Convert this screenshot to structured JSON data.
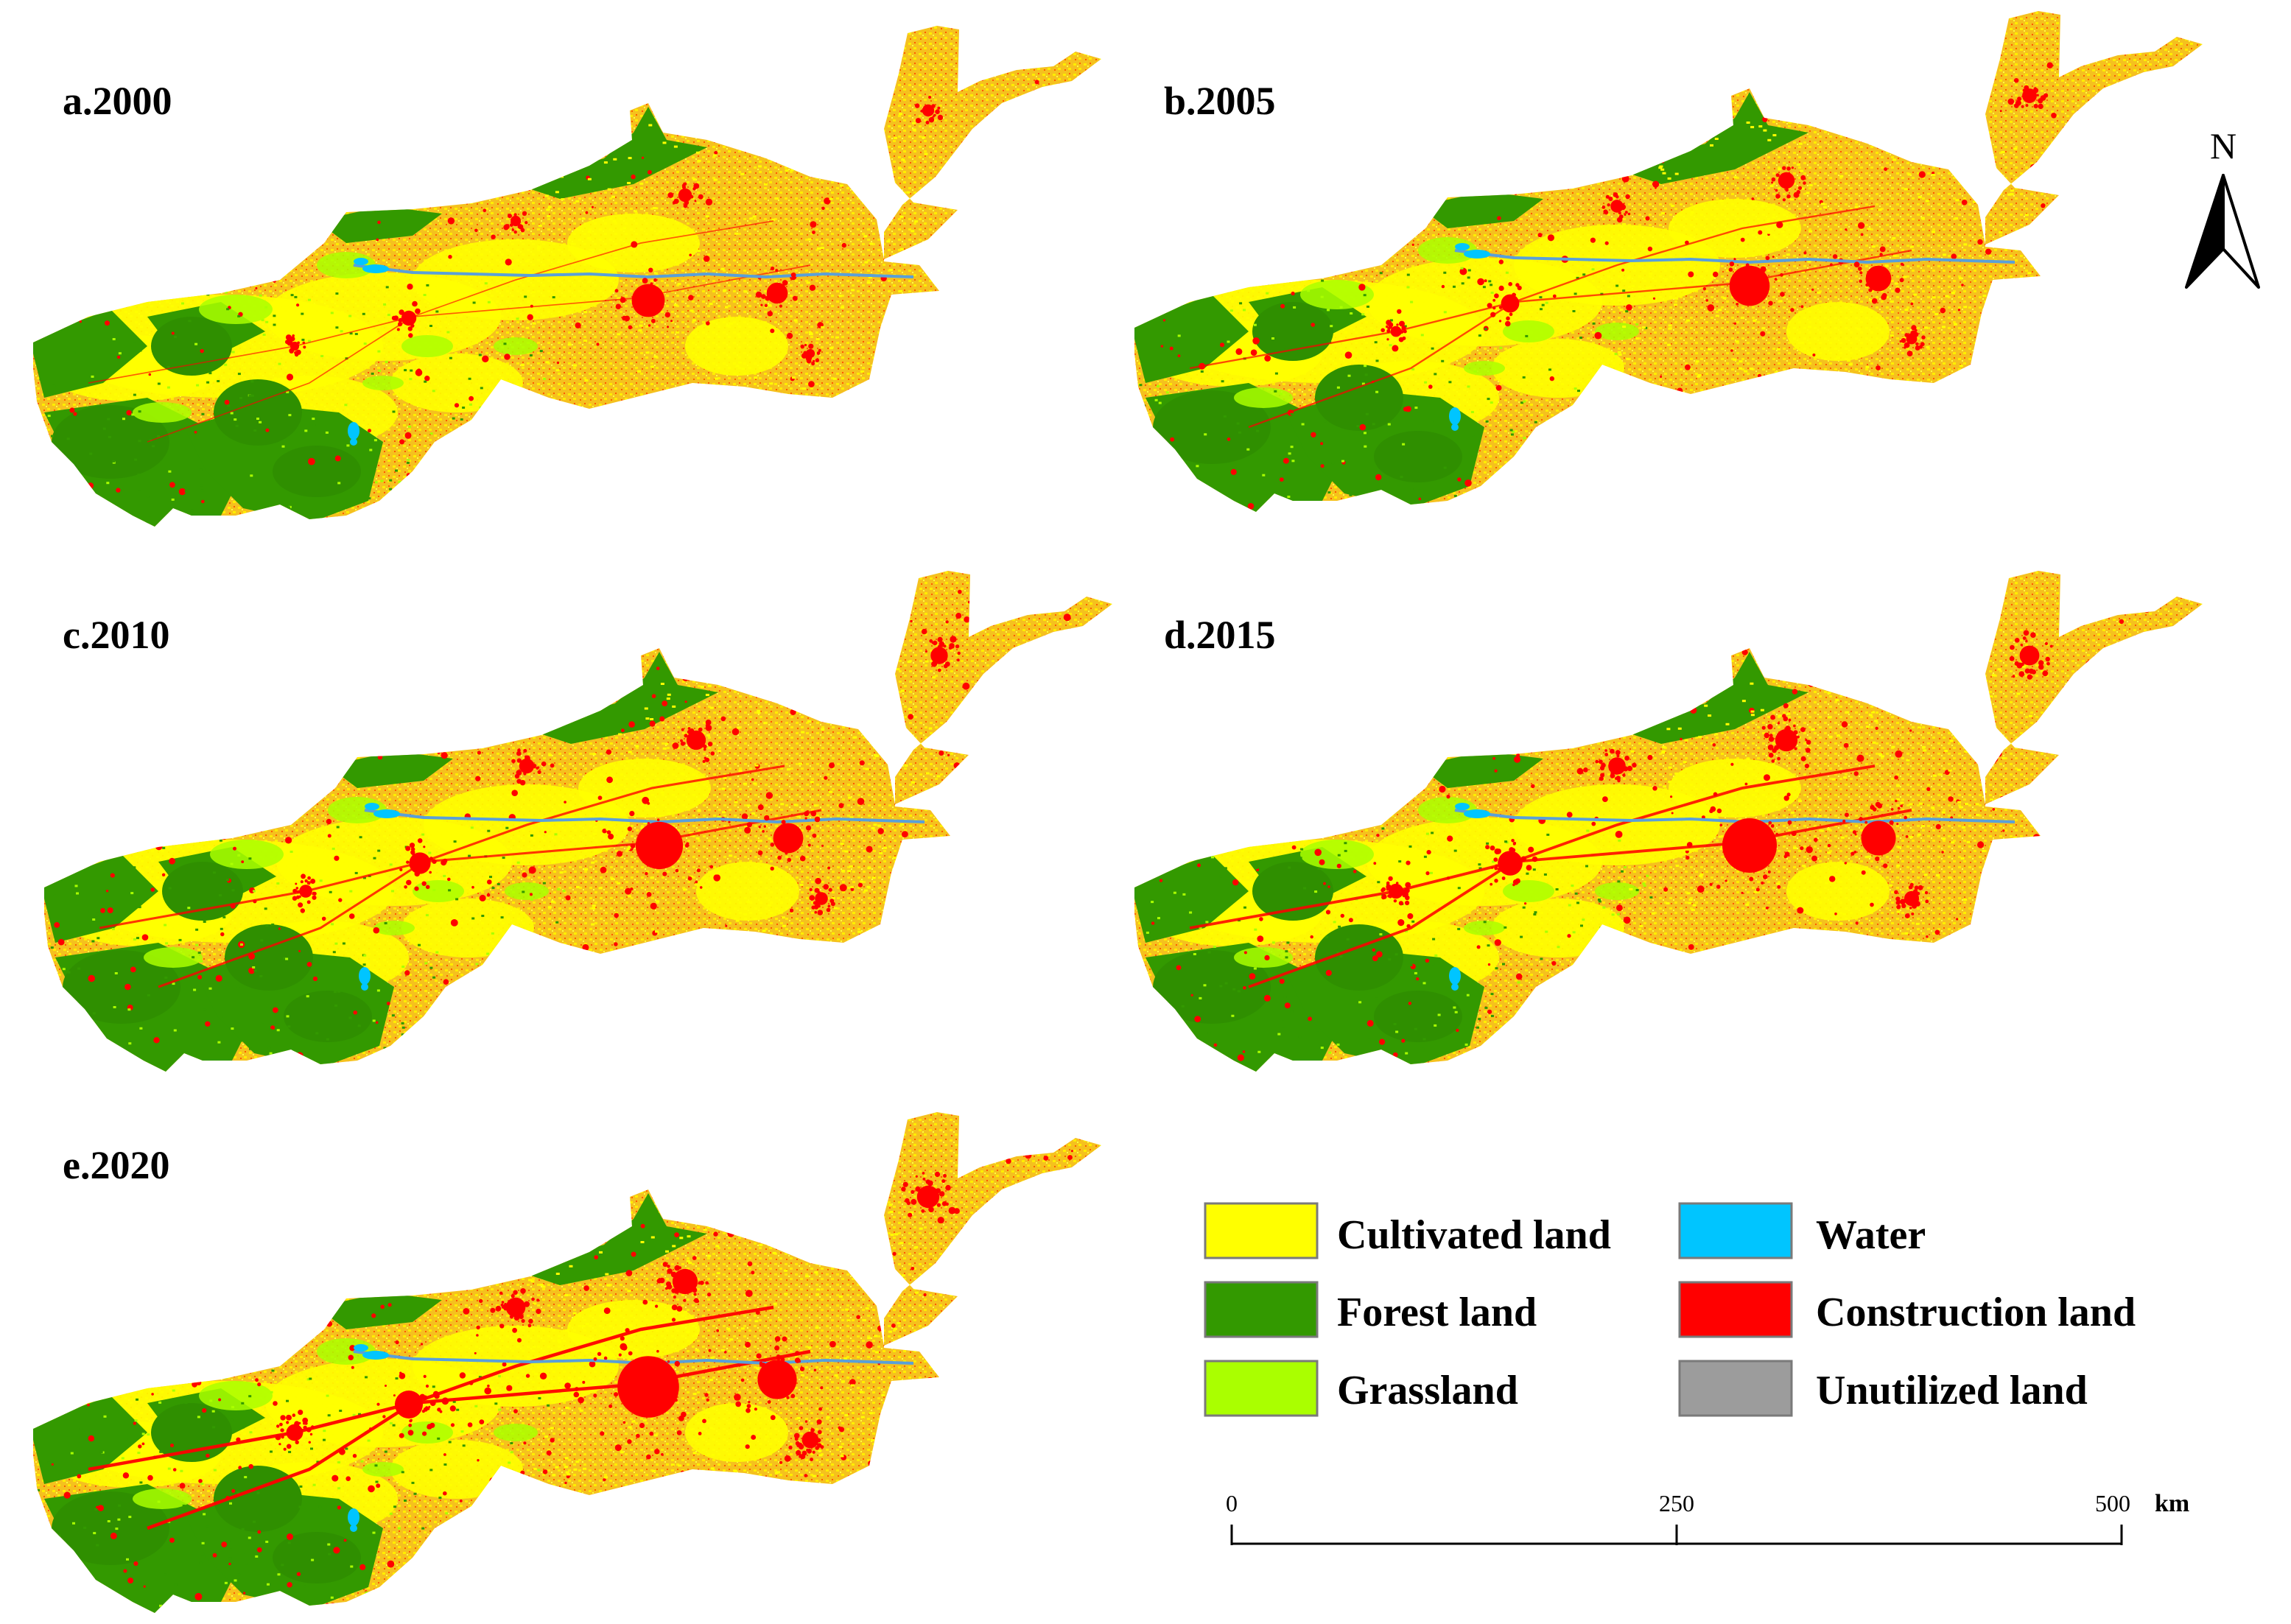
{
  "colors": {
    "cultivated": "#ffff00",
    "cultivated_mix": "#f7c21a",
    "forest": "#339900",
    "grassland": "#aaff00",
    "water": "#00c5ff",
    "construction": "#ff0000",
    "unutilized": "#9c9c9c"
  },
  "panels": [
    {
      "label": "a.2000",
      "urban_level": 1
    },
    {
      "label": "b.2005",
      "urban_level": 2
    },
    {
      "label": "c.2010",
      "urban_level": 3
    },
    {
      "label": "d.2015",
      "urban_level": 4
    },
    {
      "label": "e.2020",
      "urban_level": 5
    }
  ],
  "legend": {
    "items": [
      {
        "label": "Cultivated land",
        "color": "#ffff00"
      },
      {
        "label": "Water",
        "color": "#00c5ff"
      },
      {
        "label": "Forest land",
        "color": "#339900"
      },
      {
        "label": "Construction land",
        "color": "#ff0000"
      },
      {
        "label": "Grassland",
        "color": "#aaff00"
      },
      {
        "label": "Unutilized land",
        "color": "#9c9c9c"
      }
    ]
  },
  "scalebar": {
    "ticks": [
      "0",
      "250",
      "500"
    ],
    "unit": "km"
  },
  "north_arrow": {
    "label": "N",
    "icon": "north-arrow-icon"
  }
}
